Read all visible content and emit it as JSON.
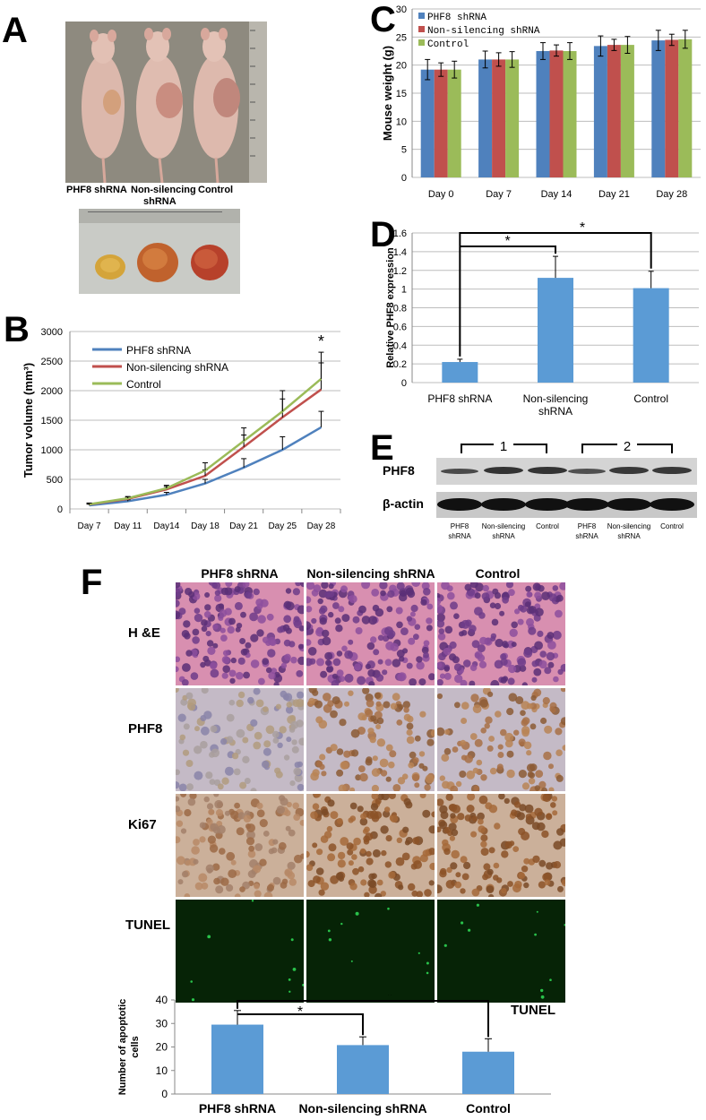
{
  "panels": {
    "a": {
      "letter": "A",
      "labels": [
        "PHF8 shRNA",
        "Non-silencing",
        "shRNA",
        "Control"
      ]
    },
    "b": {
      "letter": "B"
    },
    "c": {
      "letter": "C"
    },
    "d": {
      "letter": "D"
    },
    "e": {
      "letter": "E",
      "groups": [
        "1",
        "2"
      ],
      "rows": [
        "PHF8",
        "β-actin"
      ],
      "lanes": [
        [
          "PHF8",
          "shRNA"
        ],
        [
          "Non-silencing",
          "shRNA"
        ],
        [
          "Control"
        ],
        [
          "PHF8",
          "shRNA"
        ],
        [
          "Non-silencing",
          "shRNA"
        ],
        [
          "Control"
        ]
      ]
    },
    "f": {
      "letter": "F",
      "columns": [
        "PHF8 shRNA",
        "Non-silencing shRNA",
        "Control"
      ],
      "rows": [
        "H &E",
        "PHF8",
        "Ki67",
        "TUNEL"
      ]
    }
  },
  "colors": {
    "blue": "#4f81bd",
    "red": "#c0504d",
    "green": "#9bbb59",
    "bar": "#5b9bd5"
  },
  "chart_data": [
    {
      "panel": "B",
      "type": "line",
      "x": [
        "Day 7",
        "Day 11",
        "Day14",
        "Day 18",
        "Day 21",
        "Day 25",
        "Day 28"
      ],
      "ylabel": "Tumor volume (mm³)",
      "ylim": [
        0,
        3000
      ],
      "yticks": [
        "0",
        "500",
        "1000",
        "1500",
        "2000",
        "2500",
        "3000"
      ],
      "grid": true,
      "legend": "top-left",
      "annotation": "*",
      "series": [
        {
          "name": "PHF8 shRNA",
          "color": "#4f81bd",
          "values": [
            60,
            130,
            240,
            430,
            700,
            1000,
            1380
          ],
          "errors": [
            20,
            25,
            40,
            70,
            150,
            220,
            270
          ]
        },
        {
          "name": "Non-silencing shRNA",
          "color": "#c0504d",
          "values": [
            75,
            170,
            330,
            560,
            1050,
            1550,
            2020
          ],
          "errors": [
            20,
            30,
            50,
            100,
            200,
            310,
            450
          ]
        },
        {
          "name": "Control",
          "color": "#9bbb59",
          "values": [
            80,
            180,
            350,
            650,
            1150,
            1650,
            2200
          ],
          "errors": [
            20,
            30,
            50,
            130,
            220,
            350,
            450
          ]
        }
      ]
    },
    {
      "panel": "C",
      "type": "bar",
      "categories": [
        "Day 0",
        "Day 7",
        "Day 14",
        "Day 21",
        "Day 28"
      ],
      "ylabel": "Mouse weight (g)",
      "ylim": [
        0,
        30
      ],
      "yticks": [
        "0",
        "5",
        "10",
        "15",
        "20",
        "25",
        "30"
      ],
      "grid": true,
      "legend": "top-left",
      "series": [
        {
          "name": "PHF8 shRNA",
          "color": "#4f81bd",
          "values": [
            19.2,
            21.0,
            22.5,
            23.4,
            24.4
          ],
          "errors": [
            1.8,
            1.5,
            1.5,
            1.8,
            1.8
          ]
        },
        {
          "name": "Non-silencing shRNA",
          "color": "#c0504d",
          "values": [
            19.2,
            21.0,
            22.6,
            23.6,
            24.5
          ],
          "errors": [
            1.2,
            1.2,
            1.0,
            1.0,
            1.0
          ]
        },
        {
          "name": "Control",
          "color": "#9bbb59",
          "values": [
            19.2,
            21.0,
            22.5,
            23.6,
            24.6
          ],
          "errors": [
            1.5,
            1.4,
            1.5,
            1.5,
            1.6
          ]
        }
      ]
    },
    {
      "panel": "D",
      "type": "bar",
      "categories": [
        [
          "PHF8 shRNA"
        ],
        [
          "Non-silencing",
          "shRNA"
        ],
        [
          "Control"
        ]
      ],
      "ylabel": "Relative PHF8 expression",
      "ylim": [
        0,
        1.6
      ],
      "yticks": [
        "0",
        "0.2",
        "0.4",
        "0.6",
        "0.8",
        "1",
        "1.2",
        "1.4",
        "1.6"
      ],
      "grid": true,
      "values": [
        0.22,
        1.12,
        1.01
      ],
      "errors": [
        0.03,
        0.23,
        0.18
      ],
      "annotations": [
        "*",
        "*"
      ]
    },
    {
      "panel": "F",
      "type": "bar",
      "categories": [
        "PHF8 shRNA",
        "Non-silencing shRNA",
        "Control"
      ],
      "ylabel": "Number of apoptotic cells",
      "ylim": [
        0,
        40
      ],
      "yticks": [
        "0",
        "10",
        "20",
        "30",
        "40"
      ],
      "grid": false,
      "values": [
        29.5,
        20.8,
        18.0
      ],
      "errors": [
        6.0,
        3.5,
        5.5
      ],
      "annotations": [
        "*",
        "*"
      ],
      "label": "TUNEL"
    }
  ]
}
